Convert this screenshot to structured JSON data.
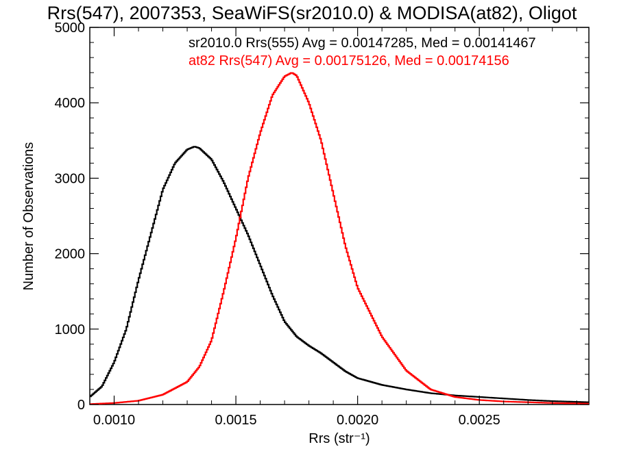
{
  "chart_data": {
    "type": "line",
    "title": "Rrs(547), 2007353, SeaWiFS(sr2010.0) & MODISA(at82), Oligot",
    "xlabel": "Rrs (str⁻¹)",
    "ylabel": "Number of Observations",
    "xlim": [
      0.0009,
      0.00295
    ],
    "ylim": [
      0,
      5000
    ],
    "xticks": [
      0.001,
      0.0015,
      0.002,
      0.0025
    ],
    "xtick_labels": [
      "0.0010",
      "0.0015",
      "0.0020",
      "0.0025"
    ],
    "yticks": [
      0,
      1000,
      2000,
      3000,
      4000,
      5000
    ],
    "ytick_labels": [
      "0",
      "1000",
      "2000",
      "3000",
      "4000",
      "5000"
    ],
    "grid": false,
    "annotations": [
      {
        "text": "sr2010.0 Rrs(555) Avg = 0.00147285, Med = 0.00141467",
        "color": "#000000"
      },
      {
        "text": "at82 Rrs(547) Avg = 0.00175126, Med = 0.00174156",
        "color": "#ff0000"
      }
    ],
    "series": [
      {
        "color": "#000000",
        "x": [
          0.0009,
          0.00095,
          0.001,
          0.00105,
          0.0011,
          0.00115,
          0.0012,
          0.00125,
          0.0013,
          0.00133,
          0.00135,
          0.0014,
          0.00145,
          0.0015,
          0.00155,
          0.0016,
          0.00165,
          0.0017,
          0.00175,
          0.0018,
          0.00185,
          0.0019,
          0.00195,
          0.002,
          0.0021,
          0.0022,
          0.0023,
          0.0024,
          0.0025,
          0.0026,
          0.0027,
          0.0028,
          0.0029,
          0.00295
        ],
        "y": [
          100,
          240,
          560,
          1000,
          1650,
          2250,
          2850,
          3200,
          3380,
          3420,
          3400,
          3250,
          2950,
          2600,
          2250,
          1850,
          1450,
          1100,
          900,
          780,
          680,
          560,
          440,
          350,
          260,
          200,
          150,
          120,
          100,
          80,
          60,
          45,
          35,
          30
        ]
      },
      {
        "color": "#ff0000",
        "x": [
          0.0009,
          0.001,
          0.0011,
          0.0012,
          0.0013,
          0.00135,
          0.0014,
          0.00145,
          0.0015,
          0.00155,
          0.0016,
          0.00163,
          0.00165,
          0.0017,
          0.00173,
          0.00175,
          0.0018,
          0.00185,
          0.0019,
          0.00195,
          0.002,
          0.0021,
          0.0022,
          0.0023,
          0.0024,
          0.0025,
          0.0026,
          0.0027,
          0.0028,
          0.0029,
          0.00295
        ],
        "y": [
          5,
          20,
          50,
          130,
          300,
          500,
          850,
          1500,
          2200,
          3000,
          3600,
          3900,
          4100,
          4350,
          4400,
          4360,
          4000,
          3500,
          2800,
          2100,
          1550,
          900,
          450,
          200,
          100,
          60,
          40,
          30,
          20,
          15,
          10
        ]
      }
    ]
  }
}
